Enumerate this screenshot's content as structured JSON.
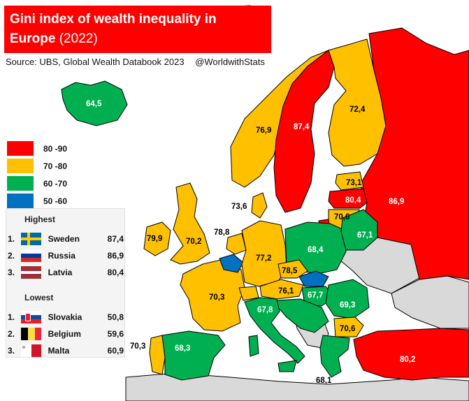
{
  "title": {
    "line1": "Gini index of wealth inequality in",
    "line2": "Europe",
    "year": "(2022)"
  },
  "source": {
    "text": "Source: UBS, Global Wealth Databook 2023",
    "handle": "@WorldwithStats"
  },
  "colors": {
    "red": "#ff0000",
    "orange": "#ffc000",
    "green": "#00b050",
    "blue": "#0070c0",
    "grey": "#d9d9d9",
    "sea": "#ffffff"
  },
  "legend": [
    {
      "label": "80 -90",
      "color": "#ff0000"
    },
    {
      "label": "70 -80",
      "color": "#ffc000"
    },
    {
      "label": "60 -70",
      "color": "#00b050"
    },
    {
      "label": "50 -60",
      "color": "#0070c0"
    }
  ],
  "highest": {
    "heading": "Highest",
    "items": [
      {
        "rank": "1.",
        "country": "Sweden",
        "value": "87,4",
        "flag": "sweden"
      },
      {
        "rank": "2.",
        "country": "Russia",
        "value": "86,9",
        "flag": "russia"
      },
      {
        "rank": "3.",
        "country": "Latvia",
        "value": "80,4",
        "flag": "latvia"
      }
    ]
  },
  "lowest": {
    "heading": "Lowest",
    "items": [
      {
        "rank": "1.",
        "country": "Slovakia",
        "value": "50,8",
        "flag": "slovakia"
      },
      {
        "rank": "2.",
        "country": "Belgium",
        "value": "59,6",
        "flag": "belgium"
      },
      {
        "rank": "3.",
        "country": "Malta",
        "value": "60,9",
        "flag": "malta"
      }
    ]
  },
  "map_labels": [
    {
      "id": "iceland",
      "text": "64,5"
    },
    {
      "id": "norway",
      "text": "76,9"
    },
    {
      "id": "sweden",
      "text": "87,4"
    },
    {
      "id": "finland",
      "text": "72,4"
    },
    {
      "id": "estonia",
      "text": "73,1"
    },
    {
      "id": "latvia",
      "text": "80,4"
    },
    {
      "id": "lithuania",
      "text": "70,6"
    },
    {
      "id": "russia",
      "text": "86,9"
    },
    {
      "id": "denmark",
      "text": "73,6"
    },
    {
      "id": "ireland",
      "text": "79,9"
    },
    {
      "id": "uk",
      "text": "70,2"
    },
    {
      "id": "netherlands",
      "text": "78,8"
    },
    {
      "id": "germany",
      "text": "77,2"
    },
    {
      "id": "poland",
      "text": "68,4"
    },
    {
      "id": "belarus",
      "text": "67,1"
    },
    {
      "id": "czechia",
      "text": "78,5"
    },
    {
      "id": "austria",
      "text": "76,1"
    },
    {
      "id": "hungary",
      "text": "67,7"
    },
    {
      "id": "romania",
      "text": "69,3"
    },
    {
      "id": "bulgaria",
      "text": "70,6"
    },
    {
      "id": "france",
      "text": "70,3"
    },
    {
      "id": "italy",
      "text": "67,8"
    },
    {
      "id": "portugal",
      "text": "70,3"
    },
    {
      "id": "spain",
      "text": "68,3"
    },
    {
      "id": "greece",
      "text": "68,1"
    },
    {
      "id": "turkey",
      "text": "80,2"
    }
  ]
}
